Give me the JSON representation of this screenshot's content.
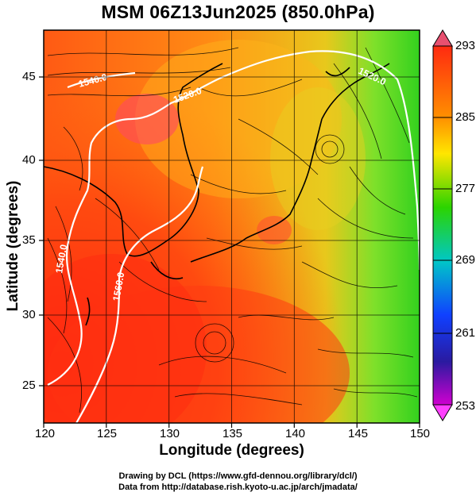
{
  "title": "MSM 06Z13Jun2025 (850.0hPa)",
  "x_axis": {
    "label": "Longitude (degrees)",
    "ticks": [
      "120",
      "125",
      "130",
      "135",
      "140",
      "145",
      "150"
    ]
  },
  "y_axis": {
    "label": "Latitude  (degrees)",
    "ticks": [
      "25",
      "30",
      "35",
      "40",
      "45"
    ]
  },
  "colorbar": {
    "ticks": [
      "293",
      "285",
      "277",
      "269",
      "261",
      "253"
    ],
    "colors": [
      "#e84b6b",
      "#ff2a10",
      "#ff8a00",
      "#ffe600",
      "#2bd400",
      "#00c7c7",
      "#1040ff",
      "#2020a0",
      "#cc00cc",
      "#ff40ff"
    ]
  },
  "contour_labels": [
    "1540.0",
    "1520.0",
    "1540.0",
    "1560.0",
    "1520.0"
  ],
  "credits": [
    "Drawing by DCL (https://www.gfd-dennou.org/library/dcl/)",
    "Data from http://database.rish.kyoto-u.ac.jp/arch/jmadata/"
  ],
  "chart_data": {
    "type": "heatmap",
    "title": "MSM 06Z13Jun2025 (850.0hPa)",
    "xlabel": "Longitude (degrees)",
    "ylabel": "Latitude  (degrees)",
    "xlim": [
      120,
      150
    ],
    "ylim": [
      22.5,
      47.5
    ],
    "colorbar_range": [
      253,
      293
    ],
    "colorbar_ticks": [
      293,
      285,
      277,
      269,
      261,
      253
    ],
    "grid": true,
    "overlays": [
      "streamlines",
      "geopotential height contours",
      "coastlines"
    ]
  }
}
